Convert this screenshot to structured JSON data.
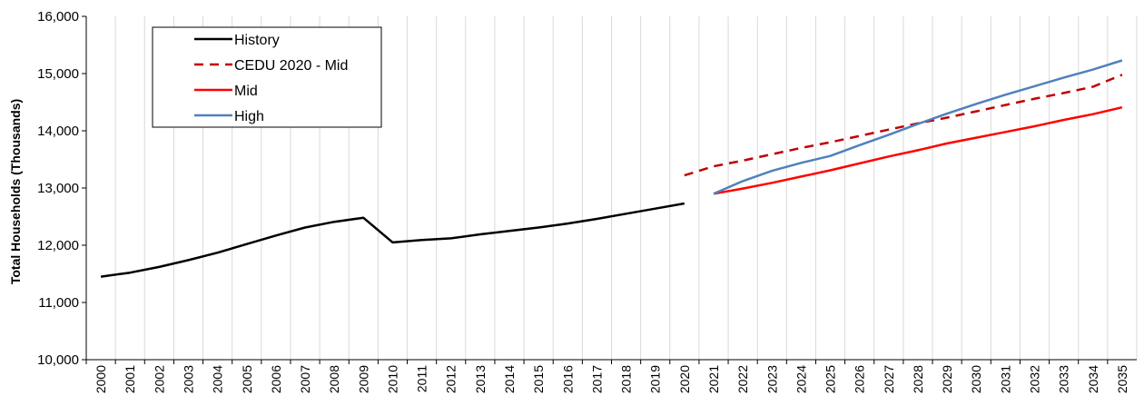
{
  "chart_data": {
    "type": "line",
    "ylabel": "Total  Households (Thousands)",
    "ylim": [
      10000,
      16000
    ],
    "y_ticks": [
      "10,000",
      "11,000",
      "12,000",
      "13,000",
      "14,000",
      "15,000",
      "16,000"
    ],
    "y_tick_values": [
      10000,
      11000,
      12000,
      13000,
      14000,
      15000,
      16000
    ],
    "x": [
      "2000",
      "2001",
      "2002",
      "2003",
      "2004",
      "2005",
      "2006",
      "2007",
      "2008",
      "2009",
      "2010",
      "2011",
      "2012",
      "2013",
      "2014",
      "2015",
      "2016",
      "2017",
      "2018",
      "2019",
      "2020",
      "2021",
      "2022",
      "2023",
      "2024",
      "2025",
      "2026",
      "2027",
      "2028",
      "2029",
      "2030",
      "2031",
      "2032",
      "2033",
      "2034",
      "2035"
    ],
    "grid": "vertical",
    "legend_position": "top-left",
    "series": [
      {
        "name": "History",
        "color": "#000000",
        "style": "solid",
        "values": [
          11450,
          11520,
          11620,
          11740,
          11870,
          12020,
          12170,
          12310,
          12410,
          12480,
          12050,
          12090,
          12120,
          12190,
          12250,
          12310,
          12380,
          12460,
          12550,
          12640,
          12730,
          null,
          null,
          null,
          null,
          null,
          null,
          null,
          null,
          null,
          null,
          null,
          null,
          null,
          null,
          null
        ]
      },
      {
        "name": "CEDU 2020 - Mid",
        "color": "#c00000",
        "style": "dashed",
        "values": [
          null,
          null,
          null,
          null,
          null,
          null,
          null,
          null,
          null,
          null,
          null,
          null,
          null,
          null,
          null,
          null,
          null,
          null,
          null,
          null,
          13220,
          13380,
          13480,
          13590,
          13700,
          13800,
          13910,
          14020,
          14130,
          14230,
          14340,
          14450,
          14560,
          14660,
          14770,
          14980
        ]
      },
      {
        "name": "Mid",
        "color": "#ff0000",
        "style": "solid",
        "values": [
          null,
          null,
          null,
          null,
          null,
          null,
          null,
          null,
          null,
          null,
          null,
          null,
          null,
          null,
          null,
          null,
          null,
          null,
          null,
          null,
          null,
          12900,
          12990,
          13090,
          13200,
          13310,
          13430,
          13550,
          13660,
          13780,
          13880,
          13980,
          14080,
          14190,
          14290,
          14410
        ]
      },
      {
        "name": "High",
        "color": "#4f81bd",
        "style": "solid",
        "values": [
          null,
          null,
          null,
          null,
          null,
          null,
          null,
          null,
          null,
          null,
          null,
          null,
          null,
          null,
          null,
          null,
          null,
          null,
          null,
          null,
          null,
          12900,
          13120,
          13300,
          13440,
          13560,
          13750,
          13930,
          14120,
          14300,
          14470,
          14630,
          14780,
          14930,
          15070,
          15230
        ]
      }
    ]
  }
}
